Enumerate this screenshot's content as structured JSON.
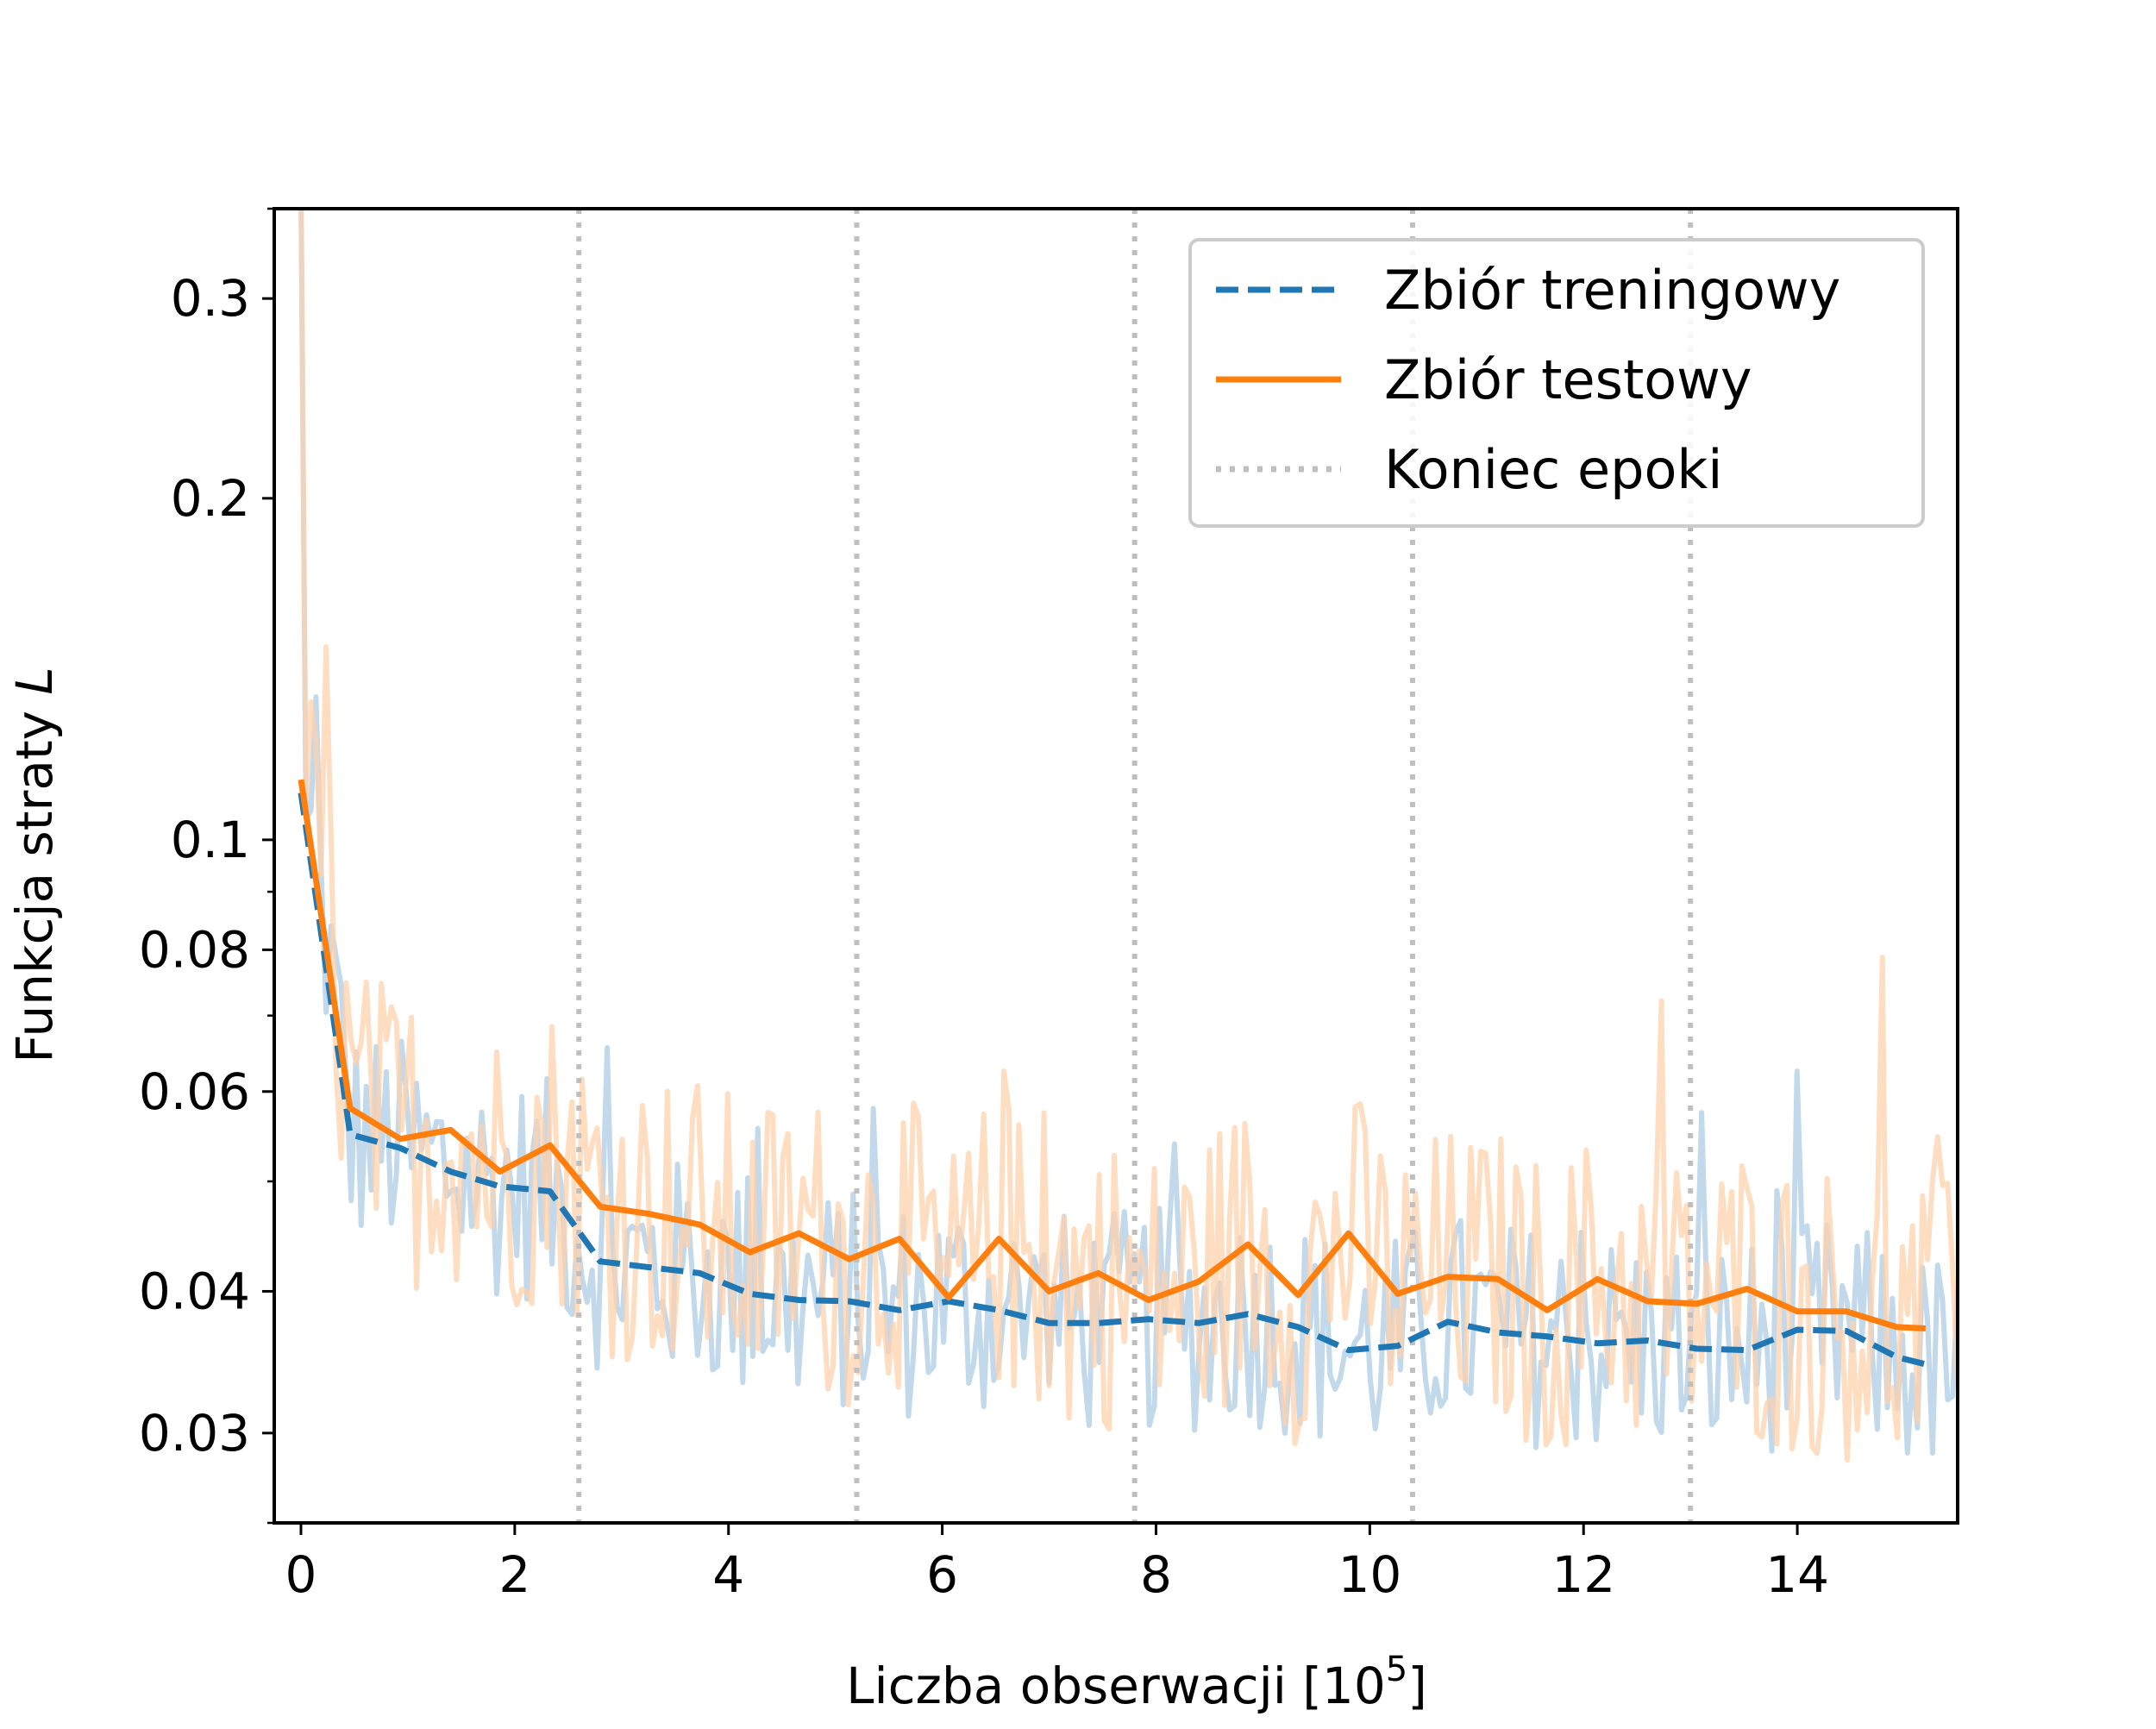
{
  "chart_data": {
    "type": "line",
    "title": "",
    "xlabel": "Liczba obserwacji [10",
    "xlabel_sup": "5",
    "xlabel_end": "]",
    "ylabel": "Funkcja straty ",
    "ylabel_italic": "L",
    "xlim": [
      -0.25,
      15.5
    ],
    "ylim": [
      0.025,
      0.36
    ],
    "yscale": "log",
    "x_ticks": [
      0,
      2,
      4,
      6,
      8,
      10,
      12,
      14
    ],
    "x_tick_labels": [
      "0",
      "2",
      "4",
      "6",
      "8",
      "10",
      "12",
      "14"
    ],
    "y_ticks": [
      0.03,
      0.04,
      0.06,
      0.08,
      0.1,
      0.2,
      0.3
    ],
    "y_tick_labels": [
      "0.03",
      "0.04",
      "0.06",
      "0.08",
      "0.1",
      "0.2",
      "0.3"
    ],
    "y_minor_ticks": [
      0.05,
      0.07,
      0.09
    ],
    "grid": false,
    "legend_position": "top-right",
    "series": [
      {
        "name": "Zbiór treningowy",
        "color": "#1f77b4",
        "style": "dashed",
        "x": [
          0.0,
          0.46,
          0.93,
          1.4,
          1.86,
          2.33,
          2.8,
          3.26,
          3.73,
          4.2,
          4.66,
          5.13,
          5.6,
          6.06,
          6.53,
          7.0,
          7.46,
          7.93,
          8.4,
          8.86,
          9.33,
          9.8,
          10.26,
          10.73,
          11.2,
          11.66,
          12.13,
          12.6,
          13.06,
          13.53,
          14.0,
          14.46,
          14.93,
          15.2
        ],
        "y": [
          0.11,
          0.055,
          0.0535,
          0.051,
          0.0495,
          0.049,
          0.0425,
          0.042,
          0.0415,
          0.0398,
          0.0393,
          0.0392,
          0.0385,
          0.0392,
          0.0385,
          0.0375,
          0.0375,
          0.0378,
          0.0375,
          0.0382,
          0.0372,
          0.0355,
          0.0358,
          0.0376,
          0.0368,
          0.0365,
          0.036,
          0.0362,
          0.0356,
          0.0355,
          0.037,
          0.0369,
          0.035,
          0.0345
        ]
      },
      {
        "name": "Zbiór testowy",
        "color": "#ff7f0e",
        "style": "solid",
        "x": [
          0.0,
          0.46,
          0.93,
          1.4,
          1.86,
          2.33,
          2.8,
          3.26,
          3.73,
          4.2,
          4.66,
          5.13,
          5.6,
          6.06,
          6.53,
          7.0,
          7.46,
          7.93,
          8.4,
          8.86,
          9.33,
          9.8,
          10.26,
          10.73,
          11.2,
          11.66,
          12.13,
          12.6,
          13.06,
          13.53,
          14.0,
          14.46,
          14.93,
          15.2
        ],
        "y": [
          0.113,
          0.058,
          0.0545,
          0.0555,
          0.051,
          0.0538,
          0.0475,
          0.0468,
          0.0458,
          0.0433,
          0.045,
          0.0427,
          0.0445,
          0.0395,
          0.0445,
          0.04,
          0.0415,
          0.0393,
          0.0408,
          0.044,
          0.0397,
          0.045,
          0.0398,
          0.0412,
          0.041,
          0.0385,
          0.041,
          0.0392,
          0.039,
          0.0402,
          0.0384,
          0.0384,
          0.0372,
          0.0371
        ]
      }
    ],
    "epoch_ends": {
      "name": "Koniec epoki",
      "color": "#bfbfbf",
      "style": "dotted",
      "x": [
        2.6,
        5.2,
        7.8,
        10.4,
        13.0
      ]
    }
  }
}
